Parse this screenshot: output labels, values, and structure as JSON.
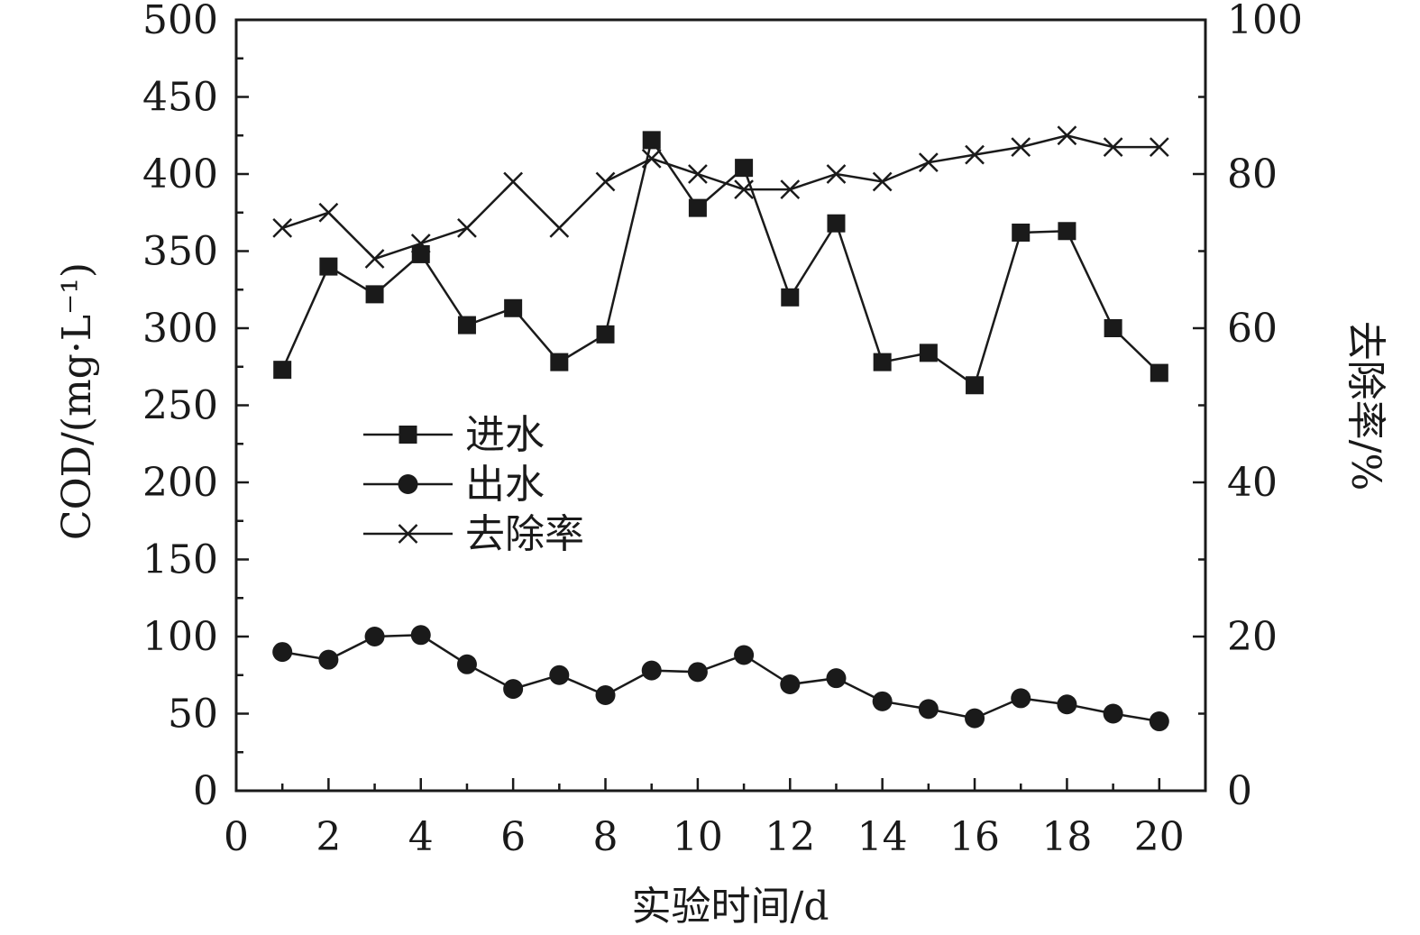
{
  "chart_data": {
    "type": "line",
    "title": "",
    "xlabel": "实验时间/d",
    "ylabel": "COD/(mg·L⁻¹)",
    "y2label": "去除率/%",
    "xlim": [
      0,
      21
    ],
    "ylim": [
      0,
      500
    ],
    "y2lim": [
      0,
      100
    ],
    "x_ticks": [
      0,
      2,
      4,
      6,
      8,
      10,
      12,
      14,
      16,
      18,
      20
    ],
    "y_ticks": [
      0,
      50,
      100,
      150,
      200,
      250,
      300,
      350,
      400,
      450,
      500
    ],
    "y2_ticks": [
      0,
      20,
      40,
      60,
      80,
      100
    ],
    "grid": false,
    "legend_position": "center-left",
    "x": [
      1,
      2,
      3,
      4,
      5,
      6,
      7,
      8,
      9,
      10,
      11,
      12,
      13,
      14,
      15,
      16,
      17,
      18,
      19,
      20
    ],
    "series": [
      {
        "name": "进水",
        "axis": "left",
        "marker": "square",
        "values": [
          273,
          340,
          322,
          348,
          302,
          313,
          278,
          296,
          422,
          378,
          404,
          320,
          368,
          278,
          284,
          263,
          362,
          363,
          300,
          271
        ]
      },
      {
        "name": "出水",
        "axis": "left",
        "marker": "circle",
        "values": [
          90,
          85,
          100,
          101,
          82,
          66,
          75,
          62,
          78,
          77,
          88,
          69,
          73,
          58,
          53,
          47,
          60,
          56,
          50,
          45
        ]
      },
      {
        "name": "去除率",
        "axis": "right",
        "marker": "cross",
        "values": [
          73,
          75,
          69,
          71,
          73,
          79,
          73,
          79,
          82,
          80,
          78,
          78,
          80,
          79,
          81.5,
          82.5,
          83.5,
          85,
          83.5,
          83.5
        ]
      }
    ]
  }
}
